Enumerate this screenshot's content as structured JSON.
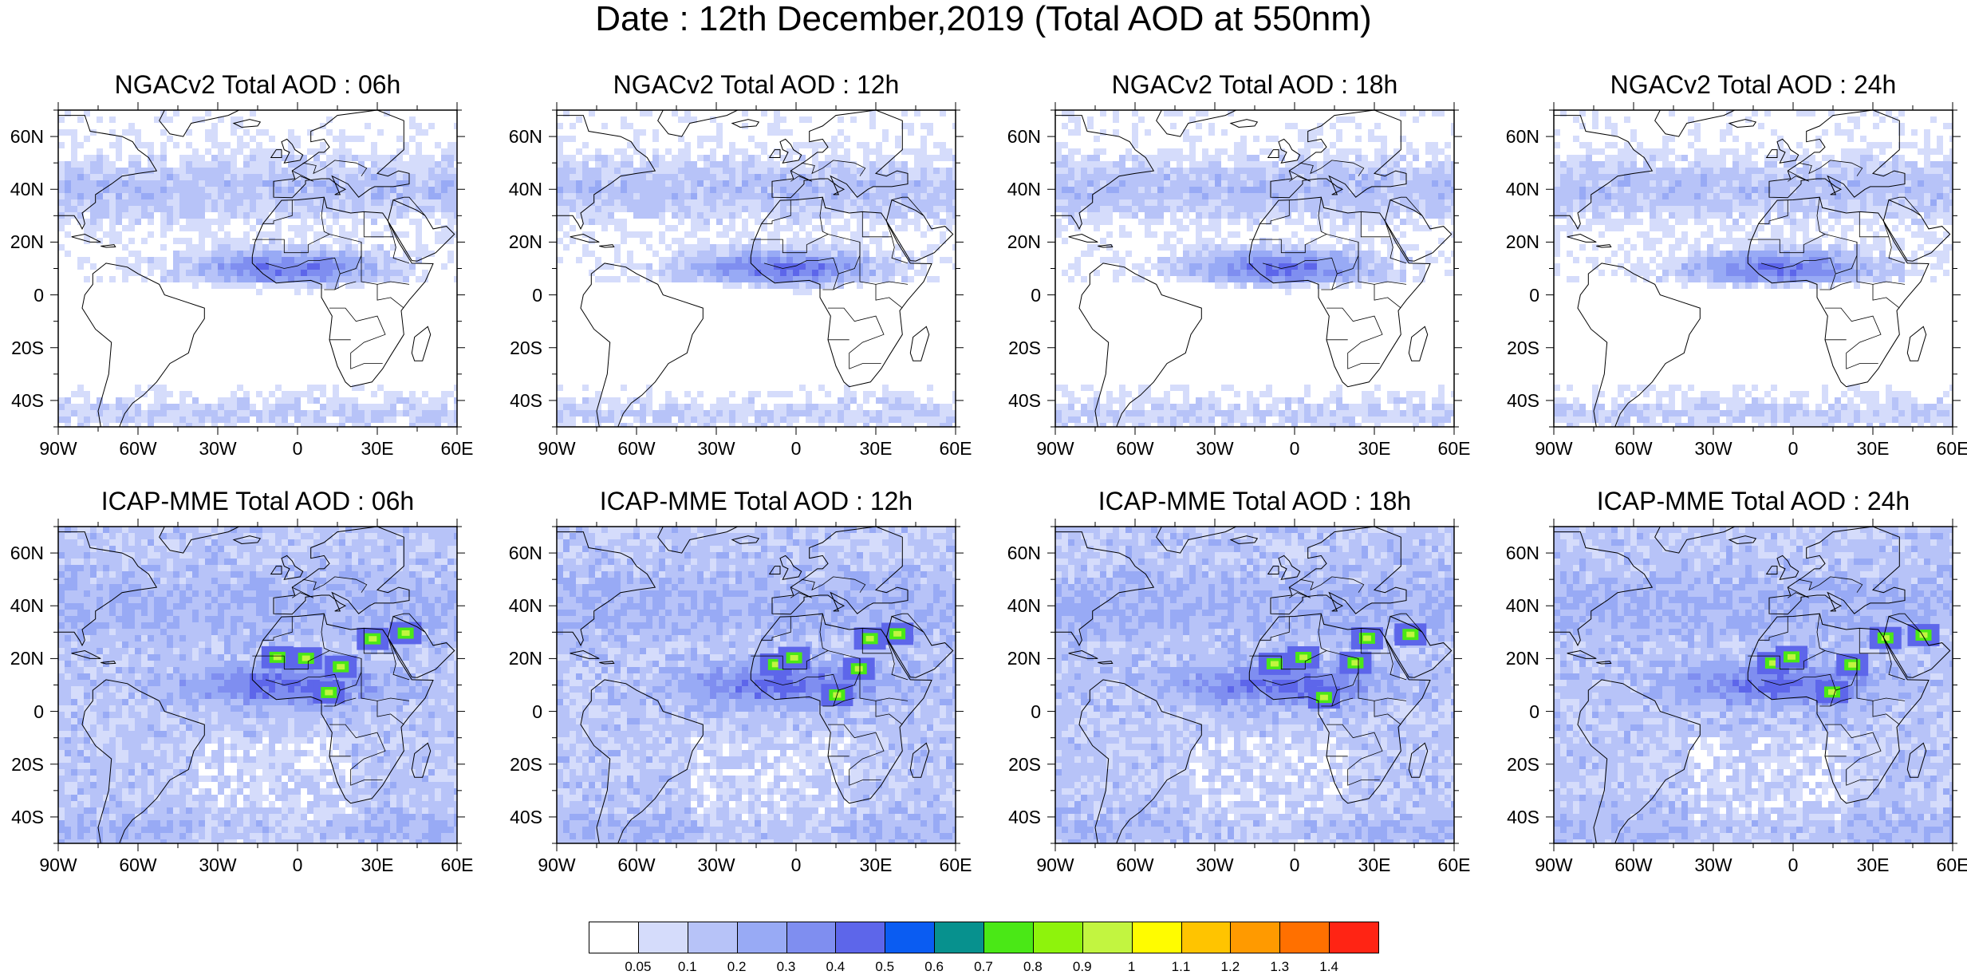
{
  "title": "Date : 12th December,2019 (Total AOD at 550nm)",
  "panels": [
    {
      "title": "NGACv2 Total AOD : 06h",
      "model": "NGACv2",
      "hour": "06h"
    },
    {
      "title": "NGACv2 Total AOD : 12h",
      "model": "NGACv2",
      "hour": "12h"
    },
    {
      "title": "NGACv2 Total AOD : 18h",
      "model": "NGACv2",
      "hour": "18h"
    },
    {
      "title": "NGACv2 Total AOD : 24h",
      "model": "NGACv2",
      "hour": "24h"
    },
    {
      "title": "ICAP-MME Total AOD : 06h",
      "model": "ICAP-MME",
      "hour": "06h"
    },
    {
      "title": "ICAP-MME Total AOD : 12h",
      "model": "ICAP-MME",
      "hour": "12h"
    },
    {
      "title": "ICAP-MME Total AOD : 18h",
      "model": "ICAP-MME",
      "hour": "18h"
    },
    {
      "title": "ICAP-MME Total AOD : 24h",
      "model": "ICAP-MME",
      "hour": "24h"
    }
  ],
  "axes": {
    "lat_labels": [
      "60N",
      "40N",
      "20N",
      "0",
      "20S",
      "40S"
    ],
    "lat_values": [
      60,
      40,
      20,
      0,
      -20,
      -40
    ],
    "lon_labels": [
      "90W",
      "60W",
      "30W",
      "0",
      "30E",
      "60E"
    ],
    "lon_values": [
      -90,
      -60,
      -30,
      0,
      30,
      60
    ],
    "lat_range": [
      -50,
      70
    ],
    "lon_range": [
      -90,
      60
    ]
  },
  "colorbar": {
    "labels": [
      "0.05",
      "0.1",
      "0.2",
      "0.3",
      "0.4",
      "0.5",
      "0.6",
      "0.7",
      "0.8",
      "0.9",
      "1",
      "1.1",
      "1.2",
      "1.3",
      "1.4"
    ],
    "colors": [
      "#ffffff",
      "#d5dcfb",
      "#b7c3f8",
      "#98aaf5",
      "#7f8ef0",
      "#5d66ea",
      "#0a5cf2",
      "#07918e",
      "#4ae816",
      "#8ef30c",
      "#c2f540",
      "#fffc00",
      "#ffc400",
      "#ff9a00",
      "#ff7000",
      "#ff2414"
    ]
  }
}
